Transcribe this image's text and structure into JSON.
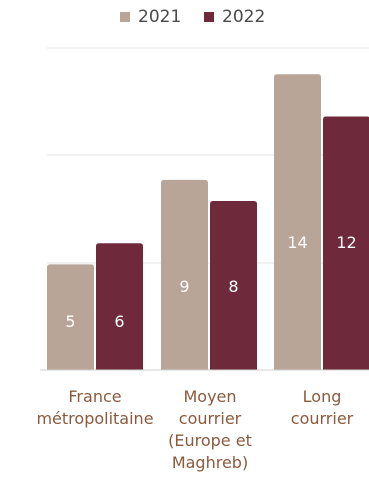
{
  "chart_data": {
    "type": "bar",
    "categories": [
      [
        "France",
        "métropolitaine"
      ],
      [
        "Moyen",
        "courrier",
        "(Europe et",
        "Maghreb)"
      ],
      [
        "Long",
        "courrier"
      ]
    ],
    "series": [
      {
        "name": "2021",
        "color": "#b9a498",
        "values": [
          5,
          9,
          14
        ]
      },
      {
        "name": "2022",
        "color": "#6e2a3b",
        "values": [
          6,
          8,
          12
        ]
      }
    ],
    "ylim": [
      0,
      15
    ],
    "grid": true,
    "legend": "top-center",
    "title": "",
    "xlabel": "",
    "ylabel": ""
  }
}
